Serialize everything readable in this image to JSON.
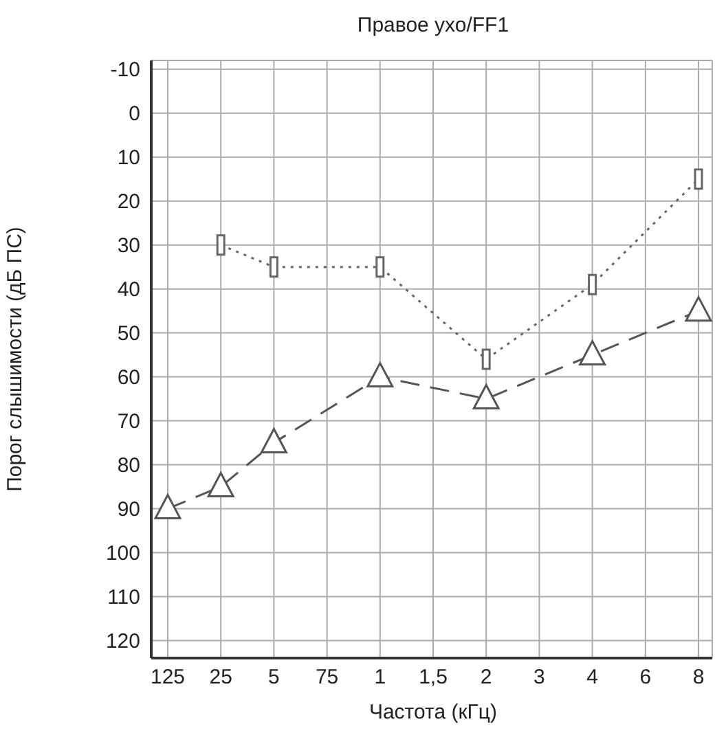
{
  "chart_data": {
    "type": "line",
    "title": "Правое ухо/FF1",
    "xlabel": "Частота (кГц)",
    "ylabel": "Порог слышимости (дБ ПС)",
    "grid": true,
    "categories": [
      "125",
      "25",
      "5",
      "75",
      "1",
      "1,5",
      "2",
      "3",
      "4",
      "6",
      "8"
    ],
    "ylim": [
      124,
      -12
    ],
    "yticks": [
      -10,
      0,
      10,
      20,
      30,
      40,
      50,
      60,
      70,
      80,
      90,
      100,
      110,
      120
    ],
    "series": [
      {
        "color": "#555555",
        "values": [
          90,
          85,
          75,
          null,
          60,
          null,
          65,
          null,
          55,
          null,
          45
        ],
        "marker": "triangle",
        "line_style": "dashed"
      },
      {
        "color": "#666666",
        "values": [
          null,
          30,
          35,
          null,
          35,
          null,
          56,
          null,
          39,
          null,
          15
        ],
        "marker": "square",
        "line_style": "dotted"
      }
    ]
  }
}
